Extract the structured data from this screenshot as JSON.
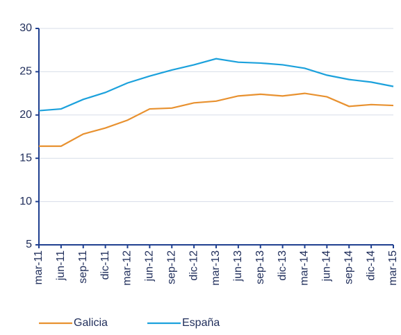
{
  "chart_data": {
    "type": "line",
    "categories": [
      "mar-11",
      "jun-11",
      "sep-11",
      "dic-11",
      "mar-12",
      "jun-12",
      "sep-12",
      "dic-12",
      "mar-13",
      "jun-13",
      "sep-13",
      "dic-13",
      "mar-14",
      "jun-14",
      "sep-14",
      "dic-14",
      "mar-15"
    ],
    "series": [
      {
        "name": "Galicia",
        "color": "#e8912f",
        "values": [
          16.4,
          16.4,
          17.8,
          18.5,
          19.4,
          20.7,
          20.8,
          21.4,
          21.6,
          22.2,
          22.4,
          22.2,
          22.5,
          22.1,
          21.0,
          21.2,
          21.1
        ]
      },
      {
        "name": "España",
        "color": "#1ba1dc",
        "values": [
          20.5,
          20.7,
          21.8,
          22.6,
          23.7,
          24.5,
          25.2,
          25.8,
          26.5,
          26.1,
          26.0,
          25.8,
          25.4,
          24.6,
          24.1,
          23.8,
          23.3
        ]
      }
    ],
    "ylim": [
      5,
      30
    ],
    "yticks": [
      5,
      10,
      15,
      20,
      25,
      30
    ],
    "grid": true,
    "legend": "bottom"
  }
}
